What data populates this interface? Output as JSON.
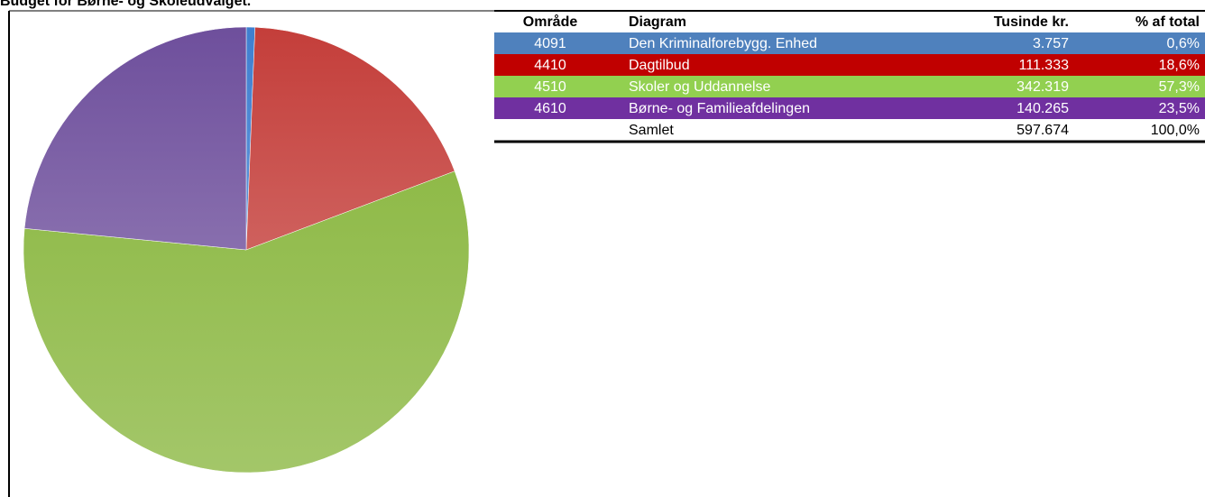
{
  "chart_data": {
    "type": "pie",
    "title": "Budget for Børne- og Skoleudvalget.",
    "columns": [
      "Område",
      "Diagram",
      "Tusinde kr.",
      "% af total"
    ],
    "codes": [
      "4091",
      "4410",
      "4510",
      "4610"
    ],
    "categories": [
      "Den Kriminalforebygg. Enhed",
      "Dagtilbud",
      "Skoler og Uddannelse",
      "Børne- og Familieafdelingen"
    ],
    "values": [
      3757,
      111333,
      342319,
      140265
    ],
    "value_labels": [
      "3.757",
      "111.333",
      "342.319",
      "140.265"
    ],
    "percents": [
      0.6,
      18.6,
      57.3,
      23.5
    ],
    "percent_labels": [
      "0,6%",
      "18,6%",
      "57,3%",
      "23,5%"
    ],
    "colors": [
      "#4f81bd",
      "#c00000",
      "#92d050",
      "#7030a0"
    ],
    "slice_colors": [
      "#3f7fd0",
      "#c43e3a",
      "#8fba48",
      "#6e4f9c"
    ],
    "total_label": "Samlet",
    "total_value": 597674,
    "total_value_label": "597.674",
    "total_percent_label": "100,0%"
  }
}
